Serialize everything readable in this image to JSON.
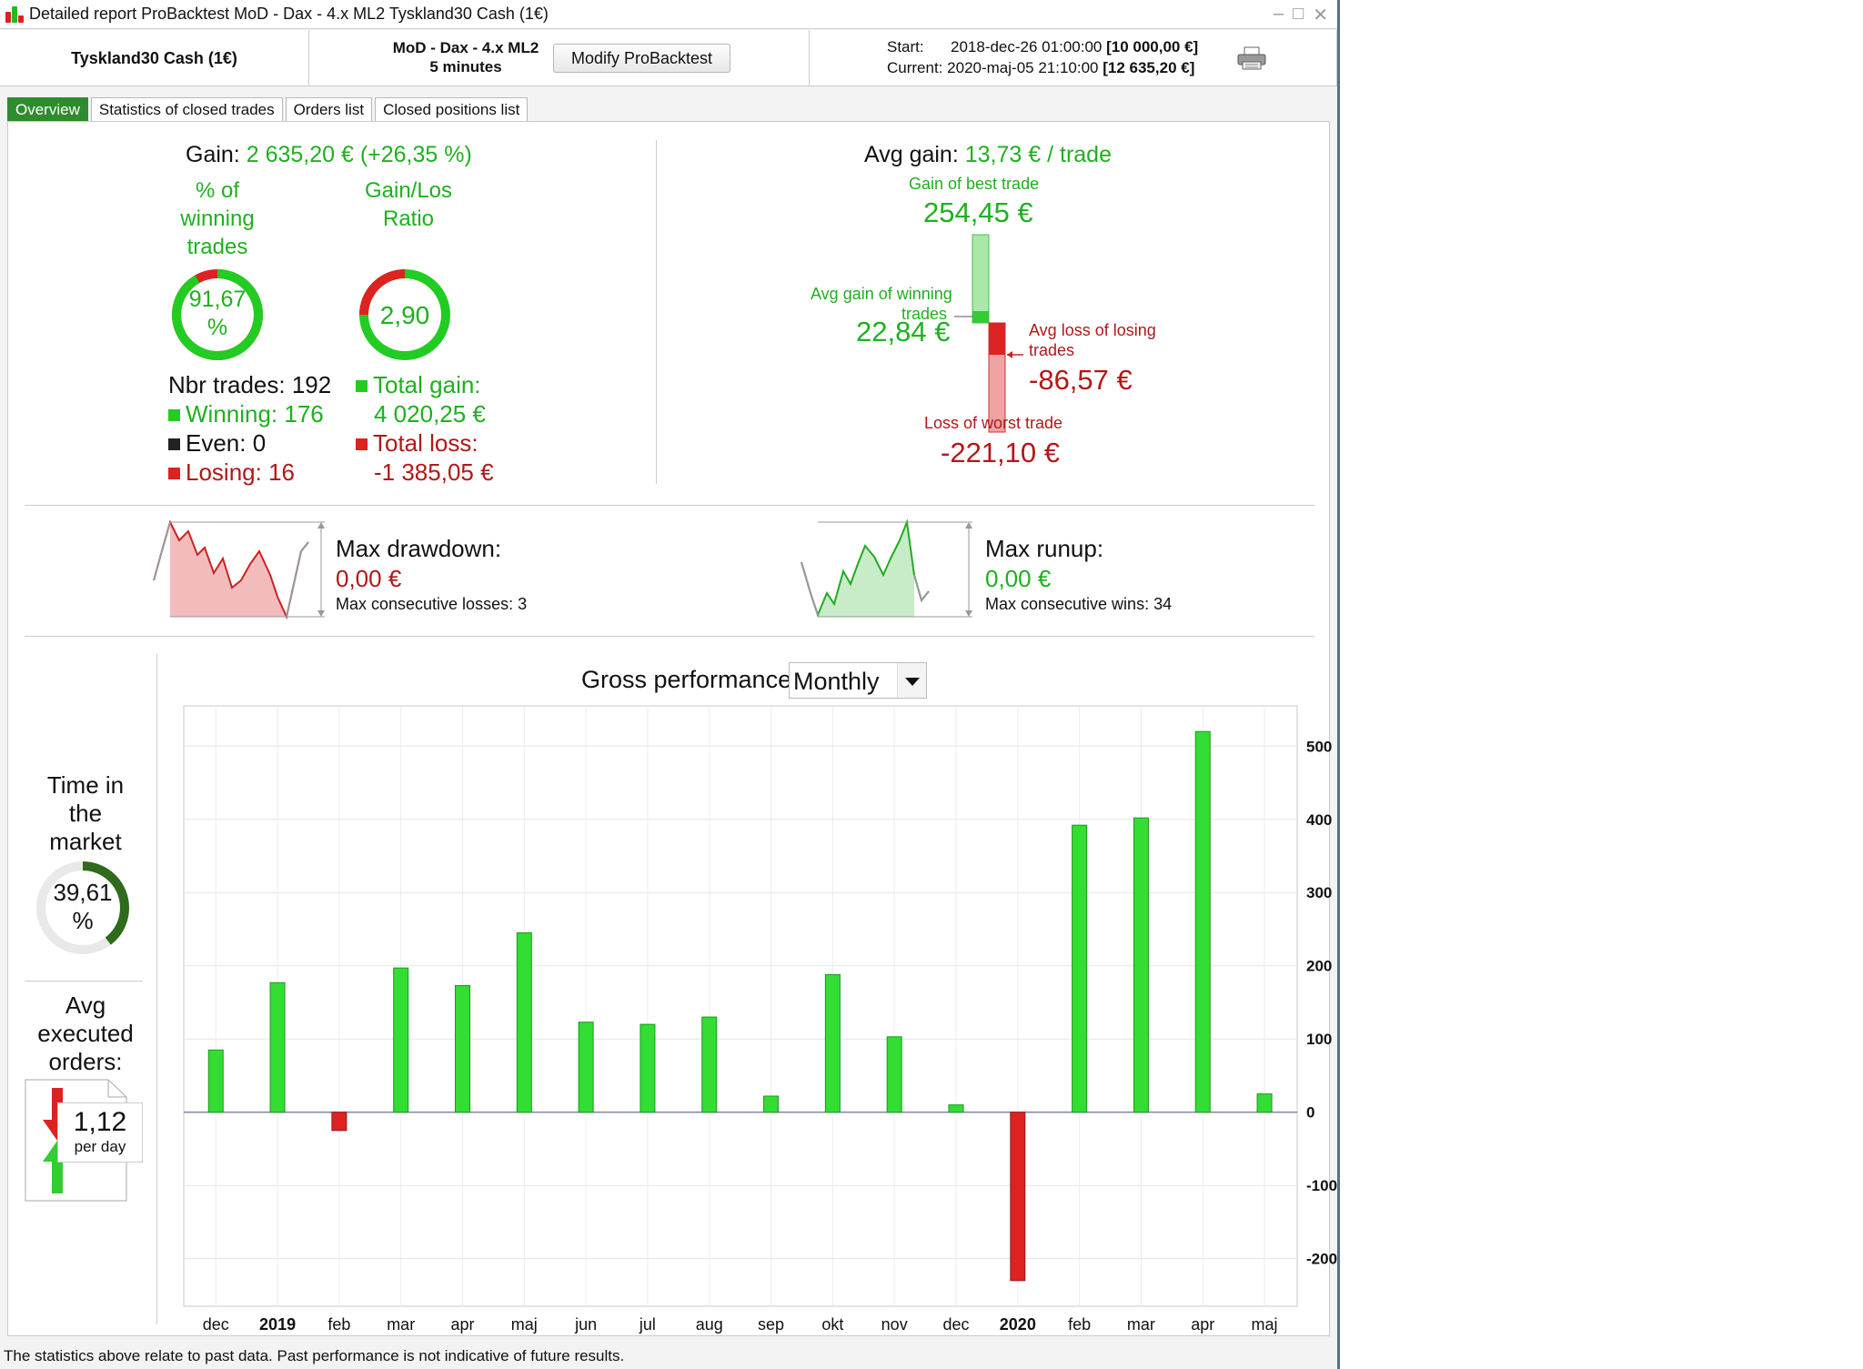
{
  "window": {
    "title": "Detailed report  ProBacktest  MoD - Dax - 4.x ML2  Tyskland30 Cash (1€)"
  },
  "header": {
    "instrument": "Tyskland30 Cash (1€)",
    "strategy_name": "MoD - Dax - 4.x ML2",
    "timeframe": "5 minutes",
    "modify_button": "Modify ProBacktest",
    "start_label": "Start:",
    "start_date": "2018-dec-26 01:00:00",
    "start_value": "[10 000,00 €]",
    "current_label": "Current:",
    "current_date": "2020-maj-05 21:10:00",
    "current_value": "[12 635,20 €]"
  },
  "tabs": [
    "Overview",
    "Statistics of closed trades",
    "Orders list",
    "Closed positions list"
  ],
  "overview": {
    "gain_label": "Gain:",
    "gain_value": "2 635,20 € (+26,35 %)",
    "winning_pct_label": [
      "% of",
      "winning",
      "trades"
    ],
    "winning_pct_value": [
      "91,67",
      "%"
    ],
    "winning_pct": 91.67,
    "gain_loss_label": [
      "Gain/Los",
      "Ratio"
    ],
    "gain_loss_value": "2,90",
    "nbr_trades": "Nbr trades: 192",
    "winning": "Winning: 176",
    "even": "Even: 0",
    "losing": "Losing: 16",
    "total_gain_label": "Total gain:",
    "total_gain_value": "4 020,25 €",
    "total_loss_label": "Total loss:",
    "total_loss_value": "-1 385,05 €",
    "avg_gain_label": "Avg gain:",
    "avg_gain_value": "13,73 € / trade",
    "best_trade_label": "Gain of best trade",
    "best_trade_value": "254,45 €",
    "avg_win_label": [
      "Avg gain of winning",
      "trades"
    ],
    "avg_win_value": "22,84 €",
    "avg_loss_label": [
      "Avg loss of losing",
      "trades"
    ],
    "avg_loss_value": "-86,57 €",
    "worst_trade_label": "Loss of worst trade",
    "worst_trade_value": "-221,10 €",
    "max_drawdown_label": "Max drawdown:",
    "max_drawdown_value": "0,00 €",
    "max_consec_losses": "Max consecutive losses: 3",
    "max_runup_label": "Max runup:",
    "max_runup_value": "0,00 €",
    "max_consec_wins": "Max consecutive wins: 34",
    "time_in_market_label": [
      "Time in",
      "the",
      "market"
    ],
    "time_in_market_value": [
      "39,61",
      "%"
    ],
    "time_in_market_pct": 39.61,
    "avg_orders_label": [
      "Avg",
      "executed",
      "orders:"
    ],
    "avg_orders_value": "1,12",
    "avg_orders_unit": "per day",
    "gross_perf_label": "Gross performance",
    "period_select": "Monthly"
  },
  "chart_data": {
    "type": "bar",
    "categories": [
      "dec",
      "2019",
      "feb",
      "mar",
      "apr",
      "maj",
      "jun",
      "jul",
      "aug",
      "sep",
      "okt",
      "nov",
      "dec",
      "2020",
      "feb",
      "mar",
      "apr",
      "maj"
    ],
    "values": [
      85,
      177,
      -25,
      197,
      173,
      245,
      123,
      120,
      130,
      22,
      188,
      103,
      10,
      -230,
      392,
      402,
      520,
      25
    ],
    "ylim": [
      -265,
      555
    ],
    "yticks": [
      -200,
      -100,
      0,
      100,
      200,
      300,
      400,
      500
    ],
    "ytick_labels": [
      "-200",
      "-100",
      "0",
      "100",
      "200",
      "300",
      "400",
      "500"
    ],
    "positive_color": "#33dd33",
    "negative_color": "#dd2222"
  },
  "footer": "The statistics above relate to past data. Past performance is not indicative of future results."
}
